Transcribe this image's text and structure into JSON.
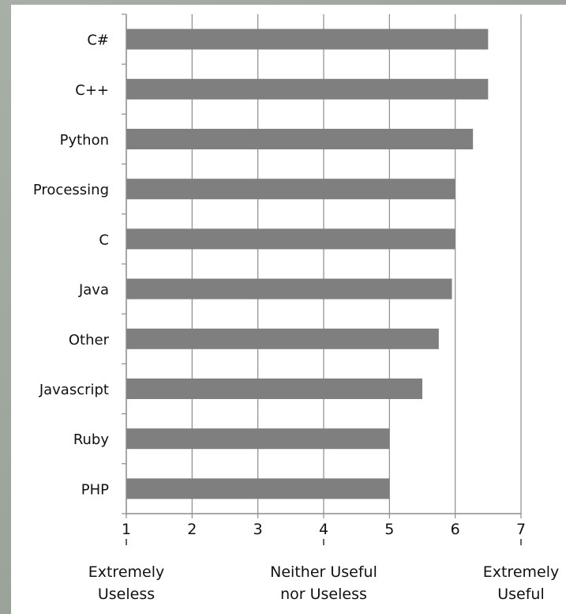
{
  "chart_data": {
    "type": "bar",
    "orientation": "horizontal",
    "categories": [
      "C#",
      "C++",
      "Python",
      "Processing",
      "C",
      "Java",
      "Other",
      "Javascript",
      "Ruby",
      "PHP"
    ],
    "values": [
      6.5,
      6.5,
      6.27,
      6.0,
      6.0,
      5.95,
      5.75,
      5.5,
      5.0,
      5.0
    ],
    "xlim": [
      1,
      7
    ],
    "x_ticks": [
      "1",
      "2",
      "3",
      "4",
      "5",
      "6",
      "7"
    ],
    "x_anchor_labels": [
      {
        "at": 1,
        "lines": [
          "Extremely",
          "Useless"
        ]
      },
      {
        "at": 4,
        "lines": [
          "Neither Useful",
          "nor Useless"
        ]
      },
      {
        "at": 7,
        "lines": [
          "Extremely",
          "Useful"
        ]
      }
    ],
    "grid": "vertical",
    "bar_color": "#7f7f7f",
    "grid_color": "#8c8c8c"
  }
}
